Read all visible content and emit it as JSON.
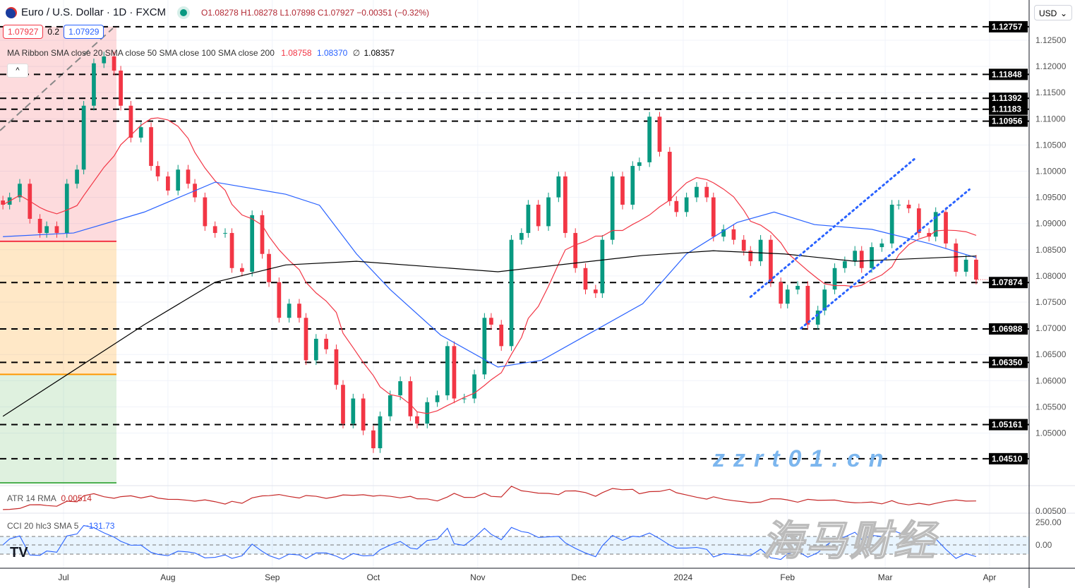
{
  "header": {
    "symbol": "Euro / U.S. Dollar · 1D · FXCM",
    "open": "O1.08278",
    "high": "H1.08278",
    "low": "L1.07898",
    "close": "C1.07927",
    "change": "−0.00351 (−0.32%)",
    "sell_price": "1.07927",
    "spread": "0.2",
    "buy_price": "1.07929",
    "currency": "USD"
  },
  "indicators": {
    "ribbon_label": "MA Ribbon SMA close 20 SMA close 50 SMA close 100 SMA close 200",
    "ribbon_v1": "1.08758",
    "ribbon_v2": "1.08370",
    "ribbon_v3": "∅",
    "ribbon_v4": "1.08357",
    "atr_label": "ATR 14 RMA",
    "atr_value": "0.00514",
    "cci_label": "CCI 20 hlc3 SMA 5",
    "cci_value": "−131.73"
  },
  "watermark": {
    "cn": "海马财经",
    "url": "zzrt01.cn"
  },
  "colors": {
    "up": "#089981",
    "down": "#f23645",
    "sma20": "#f23645",
    "sma50": "#2962ff",
    "sma200": "#000000",
    "atr": "#c62828",
    "cci": "#2962ff",
    "channel": "#2962ff"
  },
  "chart_data": {
    "type": "candlestick",
    "title": "Euro / U.S. Dollar · 1D · FXCM",
    "start": "2023-06-13",
    "end": "2024-03-28",
    "ylim": [
      1.0405,
      1.1305
    ],
    "closes": [
      1.0936,
      1.095,
      1.0976,
      1.0909,
      1.0882,
      1.0895,
      1.0882,
      1.0976,
      1.1003,
      1.1125,
      1.1206,
      1.1219,
      1.1192,
      1.1125,
      1.1064,
      1.1084,
      1.101,
      1.099,
      1.0963,
      1.1003,
      1.0976,
      1.095,
      1.0895,
      1.0882,
      1.0882,
      1.0815,
      1.0808,
      1.0916,
      1.0842,
      1.0788,
      1.072,
      1.0747,
      1.072,
      1.0639,
      1.068,
      1.066,
      1.0592,
      1.0518,
      1.0566,
      1.0505,
      1.0471,
      1.0532,
      1.0572,
      1.0599,
      1.0532,
      1.0518,
      1.0559,
      1.0572,
      1.0666,
      1.0566,
      1.0566,
      1.0612,
      1.072,
      1.0707,
      1.0666,
      1.0869,
      1.0882,
      1.0936,
      1.0895,
      1.095,
      1.099,
      1.0882,
      1.0815,
      1.0774,
      1.0767,
      1.0869,
      1.099,
      1.0936,
      1.101,
      1.1017,
      1.1104,
      1.1037,
      1.0943,
      1.0922,
      1.095,
      1.097,
      1.095,
      1.0875,
      1.0889,
      1.0869,
      1.0848,
      1.0828,
      1.0869,
      1.0788,
      1.0747,
      1.0774,
      1.0781,
      1.0707,
      1.0734,
      1.0774,
      1.0815,
      1.0828,
      1.0848,
      1.0815,
      1.0855,
      1.0862,
      1.0936,
      1.0936,
      1.0929,
      1.0882,
      1.0875,
      1.0922,
      1.0862,
      1.0808,
      1.0831,
      1.0793
    ],
    "sma50": [
      [
        "2023-06-13",
        1.0875
      ],
      [
        "2023-07-04",
        1.0882
      ],
      [
        "2023-07-25",
        1.0922
      ],
      [
        "2023-08-15",
        1.0979
      ],
      [
        "2023-09-05",
        1.0956
      ],
      [
        "2023-09-15",
        1.0935
      ],
      [
        "2023-09-26",
        1.0842
      ],
      [
        "2023-10-06",
        1.0774
      ],
      [
        "2023-10-21",
        1.0687
      ],
      [
        "2023-11-07",
        1.0626
      ],
      [
        "2023-11-20",
        1.0639
      ],
      [
        "2023-12-05",
        1.0693
      ],
      [
        "2023-12-20",
        1.0747
      ],
      [
        "2024-01-02",
        1.0842
      ],
      [
        "2024-01-17",
        1.0902
      ],
      [
        "2024-01-28",
        1.0922
      ],
      [
        "2024-02-09",
        1.0898
      ],
      [
        "2024-02-26",
        1.0889
      ],
      [
        "2024-03-14",
        1.0862
      ],
      [
        "2024-03-28",
        1.0835
      ]
    ],
    "sma200": [
      [
        "2023-06-13",
        1.0532
      ],
      [
        "2023-07-25",
        1.0707
      ],
      [
        "2023-08-15",
        1.0788
      ],
      [
        "2023-09-05",
        1.0821
      ],
      [
        "2023-09-26",
        1.0828
      ],
      [
        "2023-11-07",
        1.0808
      ],
      [
        "2023-12-20",
        1.0839
      ],
      [
        "2024-01-10",
        1.0848
      ],
      [
        "2024-01-31",
        1.0842
      ],
      [
        "2024-02-21",
        1.0828
      ],
      [
        "2024-03-28",
        1.0838
      ]
    ],
    "levels": [
      1.12757,
      1.11848,
      1.11392,
      1.11183,
      1.10956,
      1.07874,
      1.06988,
      1.0635,
      1.05161,
      1.0451
    ],
    "level_labels": [
      "1.12757",
      "1.11848",
      "1.11392",
      "1.11183",
      "1.10956",
      "1.07874",
      "1.06988",
      "1.06350",
      "1.05161",
      "1.04510"
    ],
    "yticks": [
      "1.12500",
      "1.12000",
      "1.11500",
      "1.11000",
      "1.10500",
      "1.10000",
      "1.09500",
      "1.09000",
      "1.08500",
      "1.08000",
      "1.07500",
      "1.07000",
      "1.06500",
      "1.06000",
      "1.05500",
      "1.05000"
    ],
    "xticks": [
      [
        "2023-07-01",
        "Jul"
      ],
      [
        "2023-08-01",
        "Aug"
      ],
      [
        "2023-09-01",
        "Sep"
      ],
      [
        "2023-10-01",
        "Oct"
      ],
      [
        "2023-11-01",
        "Nov"
      ],
      [
        "2023-12-01",
        "Dec"
      ],
      [
        "2024-01-01",
        "2024"
      ],
      [
        "2024-02-01",
        "Feb"
      ],
      [
        "2024-03-01",
        "Mar"
      ],
      [
        "2024-04-01",
        "Apr"
      ]
    ],
    "channel": [
      [
        [
          "2024-01-21",
          1.076
        ],
        [
          "2024-03-10",
          1.1025
        ]
      ],
      [
        [
          "2024-02-05",
          1.07
        ],
        [
          "2024-03-26",
          1.0965
        ]
      ]
    ],
    "position_zones": {
      "target": 1.1276,
      "entry": 1.0866,
      "stop": 1.0612,
      "bottom": 1.0405
    },
    "atr_ticks": [
      "0.00500"
    ],
    "cci_ticks": [
      "250.00",
      "0.00"
    ]
  }
}
